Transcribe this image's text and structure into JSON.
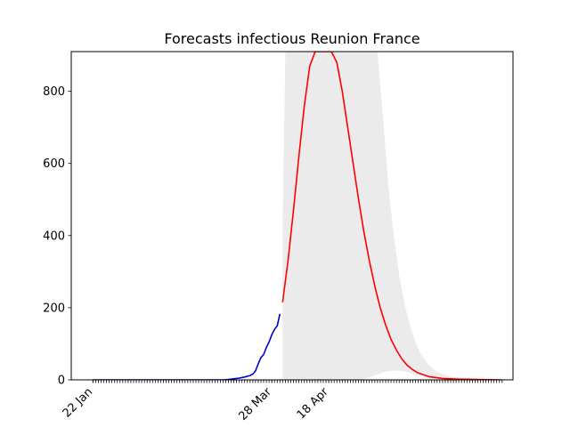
{
  "chart_data": {
    "type": "line",
    "title": "Forecasts infectious Reunion France",
    "xlabel": "",
    "ylabel": "",
    "x_axis": {
      "type": "date",
      "range": [
        "2020-01-14",
        "2020-06-25"
      ],
      "ticks": [
        {
          "date": "2020-01-22",
          "label": "22 Jan"
        },
        {
          "date": "2020-03-28",
          "label": "28 Mar"
        },
        {
          "date": "2020-04-18",
          "label": "18 Apr"
        }
      ],
      "minor_tick_range": [
        "2020-01-22",
        "2020-06-21"
      ],
      "tick_label_rotation_deg": 45
    },
    "y_axis": {
      "range": [
        0,
        910
      ],
      "ticks": [
        0,
        200,
        400,
        600,
        800
      ]
    },
    "grid": false,
    "series": [
      {
        "kind": "observed",
        "color": "#0000cc",
        "points": [
          [
            "2020-01-22",
            0
          ],
          [
            "2020-02-01",
            0
          ],
          [
            "2020-02-15",
            0
          ],
          [
            "2020-03-01",
            0
          ],
          [
            "2020-03-10",
            0
          ],
          [
            "2020-03-12",
            1
          ],
          [
            "2020-03-14",
            3
          ],
          [
            "2020-03-16",
            5
          ],
          [
            "2020-03-18",
            8
          ],
          [
            "2020-03-20",
            12
          ],
          [
            "2020-03-21",
            16
          ],
          [
            "2020-03-22",
            25
          ],
          [
            "2020-03-23",
            45
          ],
          [
            "2020-03-24",
            62
          ],
          [
            "2020-03-25",
            70
          ],
          [
            "2020-03-26",
            90
          ],
          [
            "2020-03-27",
            105
          ],
          [
            "2020-03-28",
            125
          ],
          [
            "2020-03-29",
            140
          ],
          [
            "2020-03-30",
            150
          ],
          [
            "2020-03-31",
            183
          ]
        ]
      },
      {
        "kind": "forecast",
        "color": "#ff0000",
        "points": [
          [
            "2020-04-01",
            215
          ],
          [
            "2020-04-03",
            330
          ],
          [
            "2020-04-05",
            470
          ],
          [
            "2020-04-07",
            620
          ],
          [
            "2020-04-09",
            760
          ],
          [
            "2020-04-11",
            870
          ],
          [
            "2020-04-13",
            940
          ],
          [
            "2020-04-15",
            975
          ],
          [
            "2020-04-17",
            975
          ],
          [
            "2020-04-19",
            945
          ],
          [
            "2020-04-21",
            880
          ],
          [
            "2020-04-23",
            800
          ],
          [
            "2020-04-25",
            700
          ],
          [
            "2020-04-27",
            600
          ],
          [
            "2020-04-29",
            500
          ],
          [
            "2020-05-01",
            410
          ],
          [
            "2020-05-03",
            330
          ],
          [
            "2020-05-05",
            260
          ],
          [
            "2020-05-07",
            200
          ],
          [
            "2020-05-09",
            152
          ],
          [
            "2020-05-11",
            112
          ],
          [
            "2020-05-13",
            82
          ],
          [
            "2020-05-15",
            58
          ],
          [
            "2020-05-17",
            40
          ],
          [
            "2020-05-19",
            28
          ],
          [
            "2020-05-21",
            19
          ],
          [
            "2020-05-25",
            9
          ],
          [
            "2020-05-30",
            4
          ],
          [
            "2020-06-05",
            2
          ],
          [
            "2020-06-12",
            1
          ],
          [
            "2020-06-21",
            0
          ]
        ]
      }
    ],
    "confidence_band": {
      "color": "#ebebeb",
      "upper": [
        [
          "2020-04-01",
          430
        ],
        [
          "2020-04-02",
          910
        ],
        [
          "2020-05-06",
          910
        ],
        [
          "2020-05-08",
          730
        ],
        [
          "2020-05-10",
          540
        ],
        [
          "2020-05-12",
          400
        ],
        [
          "2020-05-14",
          290
        ],
        [
          "2020-05-16",
          210
        ],
        [
          "2020-05-18",
          150
        ],
        [
          "2020-05-20",
          105
        ],
        [
          "2020-05-22",
          72
        ],
        [
          "2020-05-25",
          40
        ],
        [
          "2020-05-28",
          22
        ],
        [
          "2020-06-02",
          9
        ],
        [
          "2020-06-10",
          3
        ],
        [
          "2020-06-21",
          1
        ]
      ],
      "lower": [
        [
          "2020-06-21",
          0
        ],
        [
          "2020-06-05",
          0
        ],
        [
          "2020-05-26",
          3
        ],
        [
          "2020-05-21",
          12
        ],
        [
          "2020-05-17",
          22
        ],
        [
          "2020-05-13",
          26
        ],
        [
          "2020-05-09",
          23
        ],
        [
          "2020-05-05",
          12
        ],
        [
          "2020-05-01",
          2
        ],
        [
          "2020-04-27",
          0
        ],
        [
          "2020-04-01",
          0
        ]
      ]
    }
  }
}
